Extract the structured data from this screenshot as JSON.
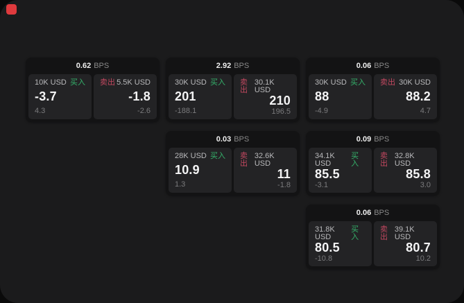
{
  "strings": {
    "bps_suffix": "BPS",
    "buy_label": "买入",
    "sell_label": "卖出"
  },
  "colors": {
    "background": "#0a0a0a",
    "window": "#1b1b1c",
    "card": "#131314",
    "tile": "#232325",
    "buy_green": "#35b26b",
    "sell_red": "#c24860",
    "indicator_red": "#df3a3d"
  },
  "indicator": {
    "name": "recording-indicator"
  },
  "cards": [
    {
      "bps": "0.62",
      "buy": {
        "notional": "10K USD",
        "price": "-3.7",
        "change": "4.3"
      },
      "sell": {
        "notional": "5.5K USD",
        "price": "-1.8",
        "change": "-2.6"
      }
    },
    {
      "bps": "2.92",
      "buy": {
        "notional": "30K USD",
        "price": "201",
        "change": "-188.1"
      },
      "sell": {
        "notional": "30.1K USD",
        "price": "210",
        "change": "196.5"
      }
    },
    {
      "bps": "0.06",
      "buy": {
        "notional": "30K USD",
        "price": "88",
        "change": "-4.9"
      },
      "sell": {
        "notional": "30K USD",
        "price": "88.2",
        "change": "4.7"
      }
    },
    {
      "bps": "0.03",
      "buy": {
        "notional": "28K USD",
        "price": "10.9",
        "change": "1.3"
      },
      "sell": {
        "notional": "32.6K USD",
        "price": "11",
        "change": "-1.8"
      }
    },
    {
      "bps": "0.09",
      "buy": {
        "notional": "34.1K USD",
        "price": "85.5",
        "change": "-3.1"
      },
      "sell": {
        "notional": "32.8K USD",
        "price": "85.8",
        "change": "3.0"
      }
    },
    {
      "bps": "0.06",
      "buy": {
        "notional": "31.8K USD",
        "price": "80.5",
        "change": "-10.8"
      },
      "sell": {
        "notional": "39.1K USD",
        "price": "80.7",
        "change": "10.2"
      }
    }
  ]
}
